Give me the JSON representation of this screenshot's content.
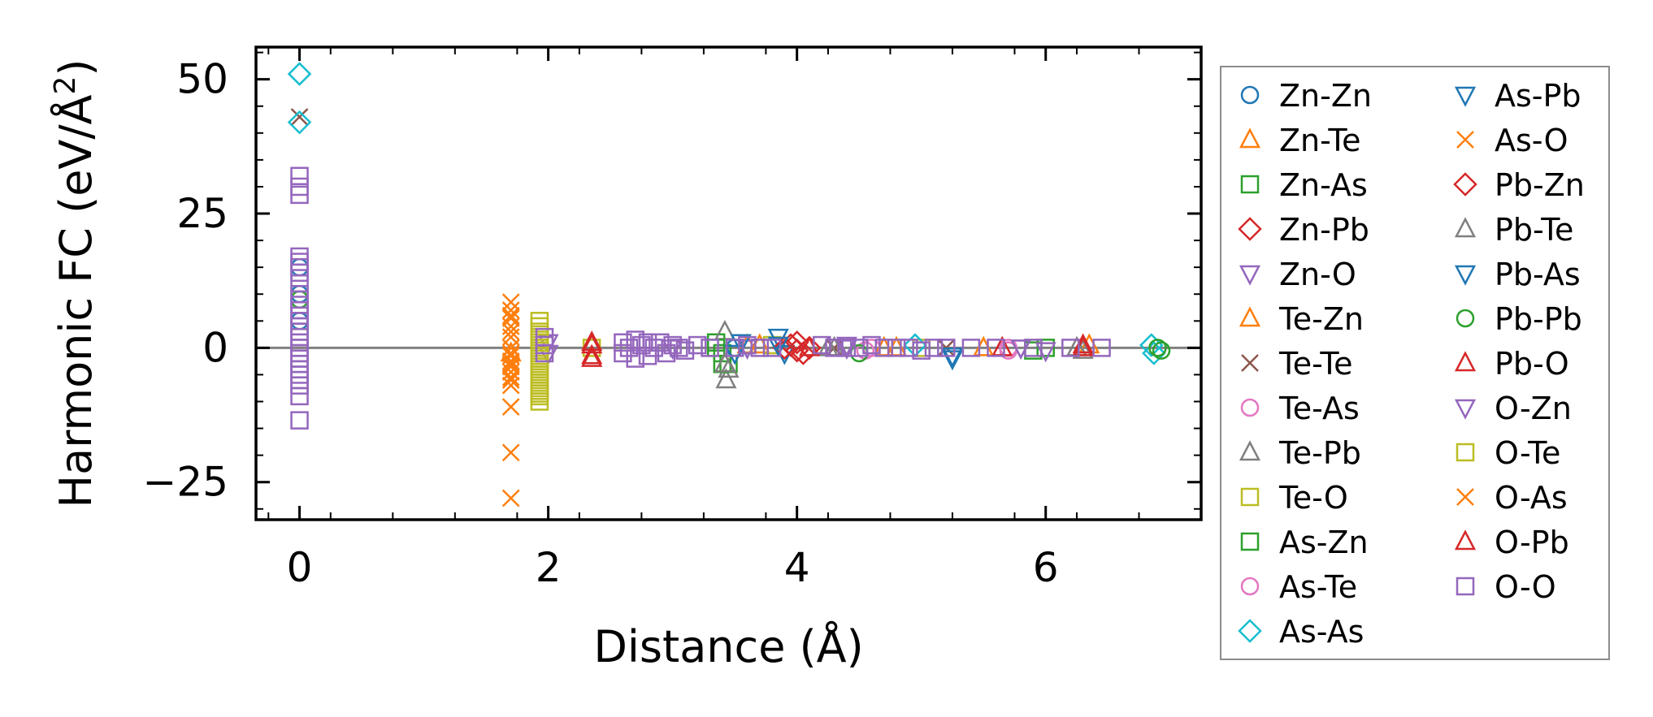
{
  "chart_data": {
    "type": "scatter",
    "title": "",
    "xlabel": "Distance (Å)",
    "ylabel_main": "Harmonic FC (eV/Å",
    "ylabel_sup": "2",
    "ylabel_end": ")",
    "xlim": [
      -0.35,
      7.25
    ],
    "ylim": [
      -32,
      56
    ],
    "xticks": [
      0,
      2,
      4,
      6
    ],
    "xtick_labels": [
      "0",
      "2",
      "4",
      "6"
    ],
    "yticks": [
      50,
      25,
      0,
      -25
    ],
    "ytick_labels": [
      "50",
      "25",
      "0",
      "−25"
    ],
    "zero_line": true,
    "grid": false,
    "legend_position": "outside-right",
    "legend_columns": 2,
    "series": [
      {
        "name": "Zn-Zn",
        "marker": "circle",
        "color": "#1f77b4",
        "x": [
          0,
          0,
          0,
          3.5
        ],
        "y": [
          15,
          10,
          5,
          0
        ]
      },
      {
        "name": "Zn-Te",
        "marker": "triangle-up",
        "color": "#ff7f0e",
        "x": [
          1.7,
          3.6,
          4.7,
          5.5
        ],
        "y": [
          -1,
          0.5,
          0,
          0
        ]
      },
      {
        "name": "Zn-As",
        "marker": "square",
        "color": "#2ca02c",
        "x": [
          3.35,
          3.4,
          3.45,
          6.0
        ],
        "y": [
          1,
          -1,
          -3,
          0
        ]
      },
      {
        "name": "Zn-Pb",
        "marker": "diamond",
        "color": "#d62728",
        "x": [
          3.95,
          4.0,
          4.1
        ],
        "y": [
          0.5,
          -0.5,
          0
        ]
      },
      {
        "name": "Zn-O",
        "marker": "triangle-down",
        "color": "#9467bd",
        "x": [
          2.0,
          3.6,
          4.4,
          5.8
        ],
        "y": [
          1,
          0,
          0.5,
          0
        ]
      },
      {
        "name": "Te-Zn",
        "marker": "triangle-up",
        "color": "#ff7f0e",
        "x": [
          3.7,
          4.8,
          6.35
        ],
        "y": [
          0.5,
          0,
          0.5
        ]
      },
      {
        "name": "Te-Te",
        "marker": "x",
        "color": "#8c564b",
        "x": [
          0,
          4.3,
          5.2
        ],
        "y": [
          43,
          0,
          0
        ]
      },
      {
        "name": "Te-As",
        "marker": "circle",
        "color": "#e377c2",
        "x": [
          4.6,
          5.7
        ],
        "y": [
          0,
          -0.5
        ]
      },
      {
        "name": "Te-Pb",
        "marker": "triangle-up",
        "color": "#7f7f7f",
        "x": [
          3.42,
          3.45,
          3.43,
          4.3,
          6.3
        ],
        "y": [
          3,
          -4,
          -6,
          0,
          -0.5
        ]
      },
      {
        "name": "Te-O",
        "marker": "square",
        "color": "#bcbd22",
        "x": [
          2.35,
          3.8,
          5.0
        ],
        "y": [
          0,
          0.5,
          0
        ]
      },
      {
        "name": "As-Zn",
        "marker": "square",
        "color": "#2ca02c",
        "x": [
          3.35,
          3.4,
          5.9
        ],
        "y": [
          0,
          -3,
          -0.5
        ]
      },
      {
        "name": "As-Te",
        "marker": "circle",
        "color": "#e377c2",
        "x": [
          4.55,
          5.7
        ],
        "y": [
          -0.5,
          0
        ]
      },
      {
        "name": "As-As",
        "marker": "diamond",
        "color": "#17becf",
        "x": [
          0,
          0,
          4.95,
          6.85,
          6.87
        ],
        "y": [
          51,
          42,
          0.5,
          0.5,
          -1
        ]
      },
      {
        "name": "As-Pb",
        "marker": "triangle-down",
        "color": "#1f77b4",
        "x": [
          3.55,
          3.85,
          3.9,
          5.25
        ],
        "y": [
          1,
          2,
          -1,
          -2
        ]
      },
      {
        "name": "As-O",
        "marker": "x",
        "color": "#ff7f0e",
        "x": [
          1.7,
          1.7,
          1.7,
          1.7,
          1.7,
          1.7,
          1.7,
          1.7,
          1.7,
          1.7,
          1.7,
          1.7,
          1.7,
          1.7,
          1.7
        ],
        "y": [
          8.5,
          7,
          5.5,
          4,
          2,
          0,
          -1.5,
          -2.5,
          -3.5,
          -4.5,
          -5.5,
          -7,
          -11,
          -19.5,
          -28
        ]
      },
      {
        "name": "Pb-Zn",
        "marker": "diamond",
        "color": "#d62728",
        "x": [
          3.9,
          4.0,
          4.05
        ],
        "y": [
          0,
          1,
          -1
        ]
      },
      {
        "name": "Pb-Te",
        "marker": "triangle-up",
        "color": "#7f7f7f",
        "x": [
          3.42,
          4.25,
          6.25
        ],
        "y": [
          -3,
          0,
          0
        ]
      },
      {
        "name": "Pb-As",
        "marker": "triangle-down",
        "color": "#1f77b4",
        "x": [
          3.5,
          3.85,
          5.25
        ],
        "y": [
          -1,
          0.5,
          -1.5
        ]
      },
      {
        "name": "Pb-Pb",
        "marker": "circle",
        "color": "#2ca02c",
        "x": [
          0,
          4.5,
          6.9,
          6.93
        ],
        "y": [
          9,
          -1,
          0,
          -0.5
        ]
      },
      {
        "name": "Pb-O",
        "marker": "triangle-up",
        "color": "#d62728",
        "x": [
          2.35,
          2.35,
          4.1,
          6.3
        ],
        "y": [
          1,
          -1.5,
          0,
          0.5
        ]
      },
      {
        "name": "O-Zn",
        "marker": "triangle-down",
        "color": "#9467bd",
        "x": [
          2.0,
          3.0,
          4.4,
          5.8,
          6.0
        ],
        "y": [
          -1,
          0,
          0,
          0,
          -0.5
        ]
      },
      {
        "name": "O-Te",
        "marker": "square",
        "color": "#bcbd22",
        "x": [
          1.93,
          1.93,
          1.93,
          1.93,
          1.93,
          1.93,
          1.93,
          1.93,
          1.93,
          1.93,
          1.93,
          1.93,
          1.93,
          1.93,
          1.93,
          1.93,
          1.93,
          1.93,
          1.93,
          1.93,
          1.93,
          1.93,
          1.93,
          1.93,
          1.93,
          1.93,
          1.93,
          1.93
        ],
        "y": [
          5,
          4,
          3,
          2.5,
          2,
          1.5,
          1,
          0.5,
          0,
          -0.5,
          -1,
          -1.5,
          -2,
          -2.5,
          -3,
          -3.5,
          -4,
          -4.5,
          -5,
          -5.5,
          -6,
          -6.5,
          -7,
          -7.5,
          -8,
          -8.5,
          -9,
          -10
        ]
      },
      {
        "name": "O-As",
        "marker": "x",
        "color": "#ff7f0e",
        "x": [
          1.7,
          1.7,
          1.7,
          1.7,
          1.7
        ],
        "y": [
          6,
          3,
          -1,
          -3,
          -6
        ]
      },
      {
        "name": "O-Pb",
        "marker": "triangle-up",
        "color": "#d62728",
        "x": [
          2.35,
          2.35,
          5.65,
          6.3
        ],
        "y": [
          0.5,
          -2,
          0,
          0
        ]
      },
      {
        "name": "O-O",
        "marker": "square",
        "color": "#9467bd",
        "x": [
          0,
          0,
          0,
          0,
          0,
          0,
          0,
          0,
          0,
          0,
          0,
          0,
          0,
          0,
          0,
          0,
          0,
          0,
          0,
          0,
          0,
          0,
          0,
          0,
          0,
          0,
          0,
          0,
          1.97,
          1.97,
          1.97,
          2.6,
          2.6,
          2.65,
          2.7,
          2.7,
          2.75,
          2.8,
          2.8,
          2.85,
          2.9,
          2.95,
          3.0,
          3.05,
          3.1,
          3.2,
          3.3,
          3.5,
          3.6,
          3.7,
          3.8,
          4.2,
          4.3,
          4.4,
          4.5,
          4.6,
          4.7,
          4.8,
          4.9,
          5.0,
          5.1,
          5.2,
          5.4,
          5.6,
          5.9,
          6.2,
          6.45
        ],
        "y": [
          32,
          30,
          28.5,
          17,
          16,
          15,
          14,
          12,
          10,
          9,
          8,
          7,
          6,
          5,
          4,
          3,
          2,
          1,
          0,
          -1,
          -2,
          -3,
          -4,
          -5,
          -6,
          -7,
          -9,
          -13.5,
          2,
          0.5,
          -1,
          1,
          -1,
          0,
          1.5,
          -2,
          0.5,
          1,
          -1.5,
          0,
          1,
          -1,
          0.5,
          0,
          -0.5,
          0.5,
          0,
          0,
          0.5,
          0,
          0,
          0.5,
          0,
          0,
          0,
          0.5,
          0,
          0,
          0,
          -0.5,
          0,
          0,
          0,
          0,
          0,
          0,
          0
        ]
      }
    ]
  }
}
